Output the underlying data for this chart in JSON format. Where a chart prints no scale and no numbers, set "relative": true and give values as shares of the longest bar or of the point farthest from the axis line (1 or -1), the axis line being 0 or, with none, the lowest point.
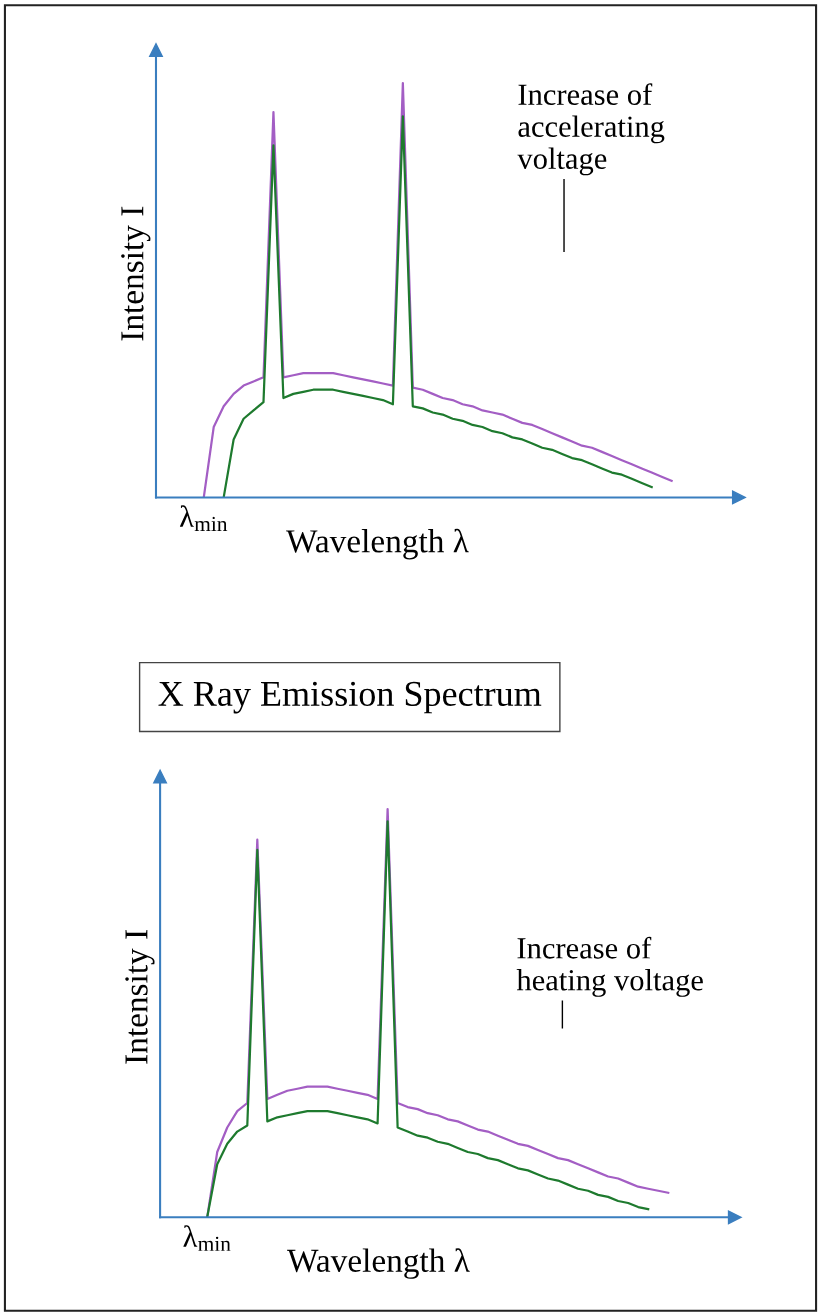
{
  "chart_data": [
    {
      "type": "line",
      "relative": true,
      "xlabel": "Wavelength λ",
      "ylabel": "Intensity I",
      "categories": [
        null,
        null,
        null,
        null,
        null,
        null,
        null,
        null,
        null,
        null,
        null,
        null,
        null,
        null,
        null,
        null,
        null,
        null,
        null,
        null,
        null,
        null,
        null,
        null,
        null,
        null,
        null,
        null,
        null,
        null,
        null,
        null,
        null,
        null,
        null,
        null,
        null,
        null,
        null,
        null,
        null,
        null,
        null,
        null,
        null,
        null,
        null,
        null
      ],
      "series": [
        {
          "color": "#a35ec4",
          "values": [
            0,
            0.17,
            0.22,
            0.25,
            0.27,
            0.28,
            0.29,
            0.93,
            0.29,
            0.295,
            0.3,
            0.3,
            0.3,
            0.3,
            0.295,
            0.29,
            0.285,
            0.28,
            0.275,
            0.27,
            1,
            0.265,
            0.26,
            0.25,
            0.24,
            0.235,
            0.225,
            0.22,
            0.21,
            0.205,
            0.2,
            0.19,
            0.18,
            0.175,
            0.165,
            0.155,
            0.145,
            0.135,
            0.125,
            0.12,
            0.11,
            0.1,
            0.09,
            0.08,
            0.07,
            0.06,
            0.05,
            0.04
          ]
        },
        {
          "color": "#1e7a2e",
          "values": [
            null,
            null,
            0,
            0.14,
            0.19,
            0.21,
            0.23,
            0.85,
            0.24,
            0.25,
            0.255,
            0.26,
            0.26,
            0.26,
            0.255,
            0.25,
            0.245,
            0.24,
            0.235,
            0.225,
            0.92,
            0.22,
            0.215,
            0.205,
            0.2,
            0.19,
            0.185,
            0.175,
            0.17,
            0.16,
            0.155,
            0.145,
            0.14,
            0.13,
            0.12,
            0.115,
            0.105,
            0.095,
            0.09,
            0.08,
            0.07,
            0.06,
            0.055,
            0.045,
            0.035,
            0.025,
            null,
            null
          ]
        }
      ],
      "annotations": [
        "λ$_{min}$",
        "Increase of\naccelerating\nvoltage"
      ]
    },
    {
      "type": "line",
      "relative": true,
      "title": "X Ray Emission Spectrum",
      "xlabel": "Wavelength λ",
      "ylabel": "Intensity I",
      "categories": [
        null,
        null,
        null,
        null,
        null,
        null,
        null,
        null,
        null,
        null,
        null,
        null,
        null,
        null,
        null,
        null,
        null,
        null,
        null,
        null,
        null,
        null,
        null,
        null,
        null,
        null,
        null,
        null,
        null,
        null,
        null,
        null,
        null,
        null,
        null,
        null,
        null,
        null,
        null,
        null,
        null,
        null,
        null,
        null,
        null,
        null,
        null
      ],
      "series": [
        {
          "color": "#a35ec4",
          "values": [
            0,
            0.16,
            0.22,
            0.26,
            0.28,
            0.925,
            0.29,
            0.3,
            0.31,
            0.315,
            0.32,
            0.32,
            0.32,
            0.315,
            0.31,
            0.305,
            0.3,
            0.29,
            1,
            0.28,
            0.27,
            0.265,
            0.255,
            0.25,
            0.24,
            0.235,
            0.225,
            0.215,
            0.21,
            0.2,
            0.19,
            0.18,
            0.175,
            0.165,
            0.155,
            0.145,
            0.14,
            0.13,
            0.12,
            0.11,
            0.1,
            0.095,
            0.085,
            0.075,
            0.07,
            0.065,
            0.06
          ]
        },
        {
          "color": "#1e7a2e",
          "values": [
            0,
            0.13,
            0.18,
            0.21,
            0.225,
            0.9,
            0.235,
            0.245,
            0.25,
            0.255,
            0.26,
            0.26,
            0.26,
            0.255,
            0.25,
            0.245,
            0.24,
            0.23,
            0.97,
            0.22,
            0.21,
            0.2,
            0.195,
            0.185,
            0.18,
            0.17,
            0.16,
            0.155,
            0.145,
            0.14,
            0.13,
            0.12,
            0.115,
            0.105,
            0.095,
            0.09,
            0.08,
            0.07,
            0.065,
            0.055,
            0.05,
            0.04,
            0.035,
            0.025,
            0.02,
            null,
            null
          ]
        }
      ],
      "annotations": [
        "λ$_{min}$",
        "Increase of\nheating voltage"
      ]
    }
  ]
}
